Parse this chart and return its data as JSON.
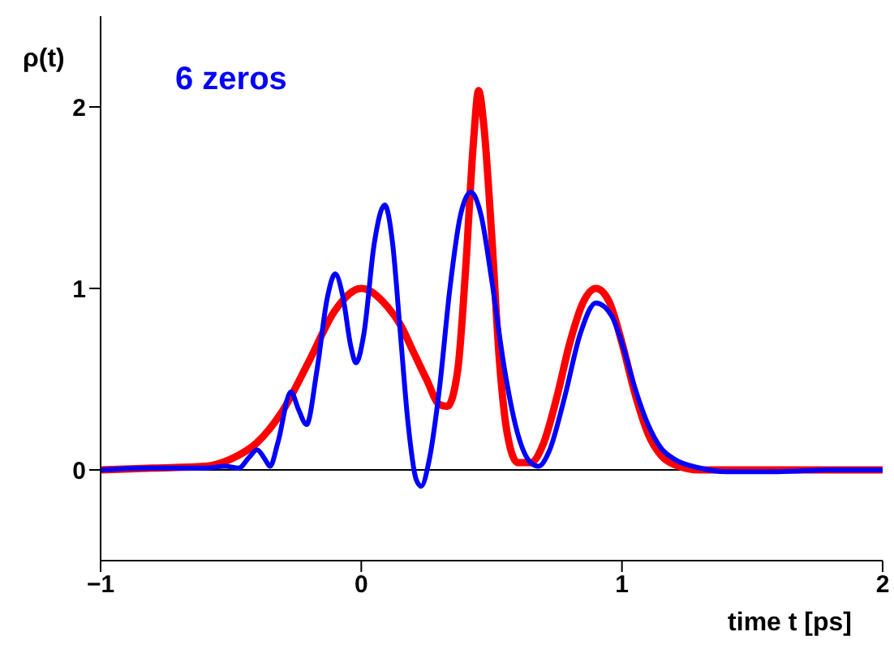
{
  "chart_data": {
    "type": "line",
    "xlabel": "time t [ps]",
    "ylabel": "ρ(t)",
    "annotations": [
      "6 zeros"
    ],
    "xlim": [
      -1,
      2
    ],
    "xticks": [
      -1,
      0,
      1,
      2
    ],
    "ylim": [
      -0.5,
      2.5
    ],
    "yticks": [
      0,
      1,
      2
    ],
    "grid": false,
    "legend": false,
    "marker": "none",
    "line_style": "solid",
    "ref_lines": [
      {
        "axis": "y",
        "value": 0,
        "color": "#000000"
      }
    ],
    "series": [
      {
        "color": "#ff0000",
        "x": [
          -1,
          -0.8,
          -0.6,
          -0.5,
          -0.4,
          -0.3,
          -0.2,
          -0.1,
          0,
          0.1,
          0.15,
          0.2,
          0.25,
          0.3,
          0.33,
          0.37,
          0.4,
          0.43,
          0.45,
          0.47,
          0.5,
          0.53,
          0.56,
          0.6,
          0.65,
          0.7,
          0.75,
          0.8,
          0.85,
          0.9,
          0.95,
          1.0,
          1.05,
          1.1,
          1.15,
          1.2,
          1.3,
          1.5,
          2
        ],
        "values": [
          0,
          0.01,
          0.02,
          0.06,
          0.15,
          0.33,
          0.6,
          0.88,
          1.0,
          0.9,
          0.8,
          0.65,
          0.5,
          0.36,
          0.35,
          0.55,
          1.1,
          1.8,
          2.09,
          1.9,
          1.3,
          0.6,
          0.2,
          0.04,
          0.04,
          0.15,
          0.4,
          0.7,
          0.92,
          1.0,
          0.93,
          0.7,
          0.42,
          0.2,
          0.08,
          0.03,
          0,
          0,
          0
        ]
      },
      {
        "color": "#0000ff",
        "x": [
          -1,
          -0.8,
          -0.6,
          -0.52,
          -0.47,
          -0.43,
          -0.4,
          -0.37,
          -0.35,
          -0.32,
          -0.27,
          -0.24,
          -0.21,
          -0.17,
          -0.13,
          -0.1,
          -0.07,
          -0.04,
          -0.02,
          0.01,
          0.05,
          0.09,
          0.12,
          0.15,
          0.18,
          0.21,
          0.23,
          0.26,
          0.3,
          0.34,
          0.38,
          0.42,
          0.46,
          0.5,
          0.55,
          0.6,
          0.65,
          0.68,
          0.72,
          0.78,
          0.84,
          0.9,
          0.96,
          1.0,
          1.05,
          1.1,
          1.15,
          1.2,
          1.3,
          1.4,
          1.6,
          1.8,
          2
        ],
        "values": [
          0,
          0.01,
          0.01,
          0.02,
          0.01,
          0.07,
          0.11,
          0.06,
          0.02,
          0.15,
          0.43,
          0.33,
          0.25,
          0.55,
          0.95,
          1.08,
          0.95,
          0.68,
          0.59,
          0.75,
          1.25,
          1.46,
          1.25,
          0.75,
          0.25,
          -0.05,
          -0.09,
          0.05,
          0.45,
          1.0,
          1.4,
          1.53,
          1.4,
          1.05,
          0.55,
          0.2,
          0.04,
          0.02,
          0.1,
          0.4,
          0.75,
          0.92,
          0.85,
          0.7,
          0.45,
          0.25,
          0.12,
          0.06,
          0.01,
          -0.01,
          -0.01,
          0,
          0
        ]
      }
    ]
  }
}
